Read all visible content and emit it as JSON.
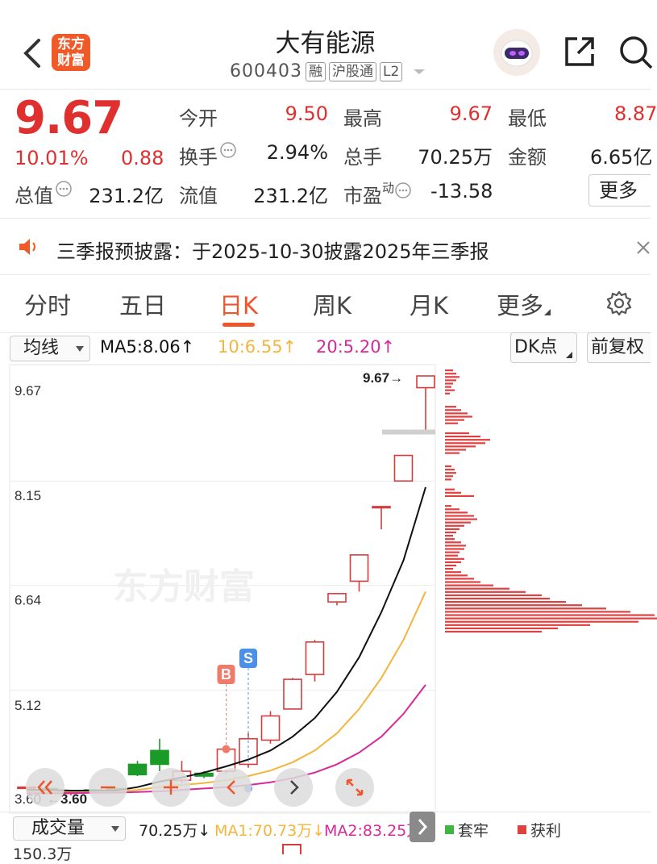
{
  "header": {
    "back_icon": "chevron-left-icon",
    "logo_text_line1": "东方",
    "logo_text_line2": "财富",
    "title": "大有能源",
    "code": "600403",
    "badges": [
      "融",
      "沪股通",
      "L2"
    ],
    "share_icon": "share-icon",
    "search_icon": "search-icon"
  },
  "quote": {
    "price": "9.67",
    "change_pct": "10.01%",
    "change": "0.88",
    "open_label": "今开",
    "open": "9.50",
    "high_label": "最高",
    "high": "9.67",
    "low_label": "最低",
    "low": "8.87",
    "turnover_label": "换手",
    "turnover": "2.94%",
    "volume_label": "总手",
    "volume": "70.25万",
    "amount_label": "金额",
    "amount": "6.65亿",
    "mktcap_label": "总值",
    "mktcap": "231.2亿",
    "float_label": "流值",
    "float_cap": "231.2亿",
    "pe_label": "市盈",
    "pe_sup": "动",
    "pe": "-13.58",
    "more_label": "更多"
  },
  "notice": {
    "text": "三季报预披露：于2025-10-30披露2025年三季报"
  },
  "tabs": [
    "分时",
    "五日",
    "日K",
    "周K",
    "月K",
    "更多"
  ],
  "active_tab": 2,
  "indicator_bar": {
    "select_label": "均线",
    "ma5": "MA5:8.06↑",
    "ma10": "10:6.55↑",
    "ma20": "20:5.20↑",
    "dk_label": "DK点",
    "adjust_label": "前复权"
  },
  "chart_data": {
    "type": "candlestick",
    "y_ticks": [
      "9.67",
      "8.15",
      "6.64",
      "5.12",
      "3.60"
    ],
    "ylim": [
      3.6,
      9.67
    ],
    "max_label": "9.67→",
    "min_label": "←3.60",
    "watermark": "东方财富",
    "buy_marker": "B",
    "sell_marker": "S",
    "candles": [
      {
        "o": 3.72,
        "c": 3.72,
        "h": 3.72,
        "l": 3.72
      },
      {
        "o": 3.7,
        "c": 3.68,
        "h": 3.72,
        "l": 3.66
      },
      {
        "o": 3.66,
        "c": 3.66,
        "h": 3.68,
        "l": 3.6
      },
      {
        "o": 3.68,
        "c": 3.66,
        "h": 3.7,
        "l": 3.64
      },
      {
        "o": 3.7,
        "c": 3.66,
        "h": 3.72,
        "l": 3.64
      },
      {
        "o": 4.05,
        "c": 3.9,
        "h": 4.1,
        "l": 3.88
      },
      {
        "o": 4.25,
        "c": 4.05,
        "h": 4.42,
        "l": 3.95
      },
      {
        "o": 3.82,
        "c": 3.95,
        "h": 4.1,
        "l": 3.78
      },
      {
        "o": 3.92,
        "c": 3.88,
        "h": 3.95,
        "l": 3.85
      },
      {
        "o": 3.95,
        "c": 4.27,
        "h": 4.27,
        "l": 3.92
      },
      {
        "o": 4.05,
        "c": 4.42,
        "h": 4.5,
        "l": 4.0
      },
      {
        "o": 4.4,
        "c": 4.75,
        "h": 4.82,
        "l": 4.35
      },
      {
        "o": 4.85,
        "c": 5.28,
        "h": 5.3,
        "l": 4.85
      },
      {
        "o": 5.35,
        "c": 5.82,
        "h": 5.85,
        "l": 5.25
      },
      {
        "o": 6.4,
        "c": 6.52,
        "h": 6.52,
        "l": 6.35
      },
      {
        "o": 6.7,
        "c": 7.08,
        "h": 7.08,
        "l": 6.55
      },
      {
        "o": 7.78,
        "c": 7.78,
        "h": 7.78,
        "l": 7.45
      },
      {
        "o": 8.15,
        "c": 8.52,
        "h": 8.52,
        "l": 8.15
      },
      {
        "o": 9.5,
        "c": 9.67,
        "h": 9.67,
        "l": 8.87
      }
    ],
    "ma5": [
      3.68,
      3.68,
      3.67,
      3.67,
      3.67,
      3.72,
      3.8,
      3.86,
      3.93,
      4.02,
      4.12,
      4.25,
      4.45,
      4.72,
      5.1,
      5.6,
      6.25,
      7.0,
      8.06
    ],
    "ma10": [
      3.66,
      3.66,
      3.66,
      3.66,
      3.66,
      3.68,
      3.72,
      3.75,
      3.78,
      3.82,
      3.88,
      3.96,
      4.08,
      4.25,
      4.5,
      4.85,
      5.3,
      5.85,
      6.55
    ],
    "ma20": [
      3.63,
      3.63,
      3.63,
      3.64,
      3.64,
      3.65,
      3.66,
      3.68,
      3.7,
      3.72,
      3.75,
      3.79,
      3.85,
      3.93,
      4.05,
      4.22,
      4.45,
      4.78,
      5.2
    ],
    "colors": {
      "up": "#d83b3b",
      "down": "#1a9a26",
      "ma5": "#111111",
      "ma10": "#f5b43c",
      "ma20": "#d62a9a"
    }
  },
  "chip_distribution": {
    "legend_trapped": "套牢",
    "legend_profit": "获利",
    "trapped_color": "#3db83d",
    "profit_color": "#e04040"
  },
  "volume_bar": {
    "select_label": "成交量",
    "value": "70.25万↓",
    "ma1": "MA1:70.73万↓",
    "ma2": "MA2:83.25万",
    "top_tick": "150.3万"
  }
}
